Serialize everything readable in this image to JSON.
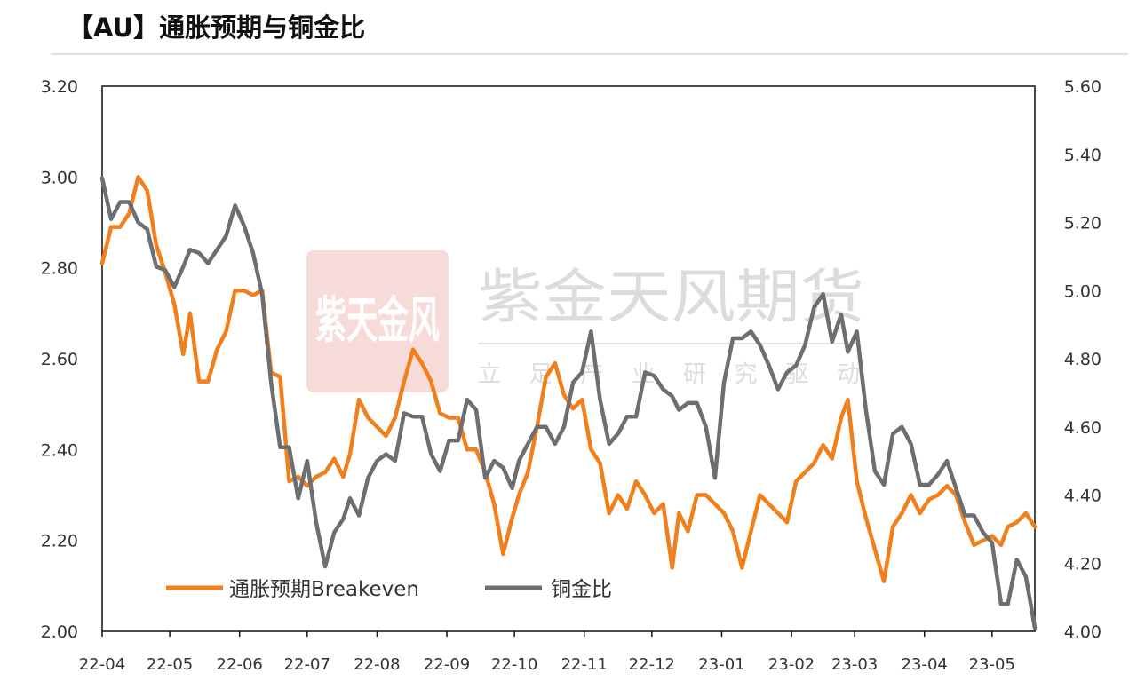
{
  "title": "【AU】通胀预期与铜金比",
  "watermark": {
    "brand": "紫金天风期货",
    "slogan": "立 足 产 业 研 究 驱 动",
    "seal": "紫天金风"
  },
  "chart_data": {
    "type": "line",
    "title": "【AU】通胀预期与铜金比",
    "legend_position": "bottom-left-inside",
    "grid": false,
    "x_tick_labels": [
      "22-04",
      "22-05",
      "22-06",
      "22-07",
      "22-08",
      "22-09",
      "22-10",
      "22-11",
      "22-12",
      "23-01",
      "23-02",
      "23-03",
      "23-04",
      "23-05"
    ],
    "x_tick_dates": [
      "2022-04-01",
      "2022-05-01",
      "2022-06-01",
      "2022-07-01",
      "2022-08-01",
      "2022-09-01",
      "2022-10-01",
      "2022-11-01",
      "2022-12-01",
      "2023-01-01",
      "2023-02-01",
      "2023-03-01",
      "2023-04-01",
      "2023-05-01"
    ],
    "xlim": [
      "2022-04-01",
      "2023-05-20"
    ],
    "y_left": {
      "ylim": [
        2.0,
        3.2
      ],
      "ticks": [
        "2.00",
        "2.20",
        "2.40",
        "2.60",
        "2.80",
        "3.00",
        "3.20"
      ]
    },
    "y_right": {
      "ylim": [
        4.0,
        5.6
      ],
      "ticks": [
        "4.00",
        "4.20",
        "4.40",
        "4.60",
        "4.80",
        "5.00",
        "5.20",
        "5.40",
        "5.60"
      ]
    },
    "x": [
      "2022-04-01",
      "2022-04-05",
      "2022-04-09",
      "2022-04-13",
      "2022-04-17",
      "2022-04-21",
      "2022-04-25",
      "2022-04-29",
      "2022-05-03",
      "2022-05-07",
      "2022-05-10",
      "2022-05-14",
      "2022-05-18",
      "2022-05-22",
      "2022-05-26",
      "2022-05-30",
      "2022-06-03",
      "2022-06-07",
      "2022-06-11",
      "2022-06-15",
      "2022-06-19",
      "2022-06-23",
      "2022-06-27",
      "2022-07-01",
      "2022-07-05",
      "2022-07-09",
      "2022-07-13",
      "2022-07-17",
      "2022-07-20",
      "2022-07-24",
      "2022-07-28",
      "2022-08-01",
      "2022-08-05",
      "2022-08-09",
      "2022-08-13",
      "2022-08-17",
      "2022-08-21",
      "2022-08-25",
      "2022-08-29",
      "2022-09-02",
      "2022-09-06",
      "2022-09-10",
      "2022-09-14",
      "2022-09-18",
      "2022-09-22",
      "2022-09-26",
      "2022-09-30",
      "2022-10-03",
      "2022-10-07",
      "2022-10-11",
      "2022-10-15",
      "2022-10-19",
      "2022-10-23",
      "2022-10-27",
      "2022-10-31",
      "2022-11-04",
      "2022-11-08",
      "2022-11-12",
      "2022-11-16",
      "2022-11-20",
      "2022-11-24",
      "2022-11-28",
      "2022-12-02",
      "2022-12-06",
      "2022-12-10",
      "2022-12-13",
      "2022-12-17",
      "2022-12-21",
      "2022-12-25",
      "2022-12-29",
      "2023-01-02",
      "2023-01-06",
      "2023-01-10",
      "2023-01-14",
      "2023-01-18",
      "2023-01-22",
      "2023-01-26",
      "2023-01-30",
      "2023-02-03",
      "2023-02-07",
      "2023-02-11",
      "2023-02-15",
      "2023-02-19",
      "2023-02-23",
      "2023-02-26",
      "2023-03-02",
      "2023-03-06",
      "2023-03-10",
      "2023-03-14",
      "2023-03-18",
      "2023-03-22",
      "2023-03-26",
      "2023-03-30",
      "2023-04-03",
      "2023-04-07",
      "2023-04-11",
      "2023-04-15",
      "2023-04-19",
      "2023-04-23",
      "2023-04-27",
      "2023-05-01",
      "2023-05-05",
      "2023-05-08",
      "2023-05-12",
      "2023-05-16",
      "2023-05-20"
    ],
    "series": [
      {
        "name": "通胀预期Breakeven",
        "axis": "left",
        "color": "#f07f1c",
        "values": [
          2.81,
          2.89,
          2.89,
          2.92,
          3.0,
          2.97,
          2.85,
          2.79,
          2.72,
          2.61,
          2.7,
          2.55,
          2.55,
          2.62,
          2.66,
          2.75,
          2.75,
          2.74,
          2.75,
          2.57,
          2.56,
          2.33,
          2.34,
          2.32,
          2.34,
          2.35,
          2.38,
          2.34,
          2.39,
          2.51,
          2.47,
          2.45,
          2.43,
          2.47,
          2.55,
          2.62,
          2.59,
          2.55,
          2.48,
          2.47,
          2.47,
          2.4,
          2.4,
          2.35,
          2.28,
          2.17,
          2.25,
          2.3,
          2.35,
          2.45,
          2.56,
          2.59,
          2.52,
          2.49,
          2.51,
          2.4,
          2.37,
          2.26,
          2.3,
          2.27,
          2.33,
          2.3,
          2.26,
          2.28,
          2.14,
          2.26,
          2.22,
          2.3,
          2.3,
          2.28,
          2.26,
          2.22,
          2.14,
          2.22,
          2.3,
          2.28,
          2.26,
          2.24,
          2.33,
          2.35,
          2.37,
          2.41,
          2.38,
          2.47,
          2.51,
          2.33,
          2.25,
          2.18,
          2.11,
          2.23,
          2.26,
          2.3,
          2.26,
          2.29,
          2.3,
          2.32,
          2.3,
          2.24,
          2.19,
          2.2,
          2.21,
          2.19,
          2.23,
          2.24,
          2.26,
          2.23
        ]
      },
      {
        "name": "铜金比",
        "axis": "right",
        "color": "#6d6e71",
        "values": [
          5.33,
          5.21,
          5.26,
          5.26,
          5.2,
          5.18,
          5.07,
          5.06,
          5.01,
          5.07,
          5.12,
          5.11,
          5.08,
          5.12,
          5.16,
          5.25,
          5.19,
          5.11,
          4.99,
          4.73,
          4.54,
          4.54,
          4.39,
          4.5,
          4.32,
          4.19,
          4.29,
          4.33,
          4.39,
          4.34,
          4.45,
          4.5,
          4.52,
          4.5,
          4.64,
          4.63,
          4.63,
          4.52,
          4.47,
          4.56,
          4.56,
          4.68,
          4.65,
          4.45,
          4.5,
          4.48,
          4.42,
          4.5,
          4.55,
          4.6,
          4.6,
          4.55,
          4.6,
          4.73,
          4.76,
          4.88,
          4.68,
          4.55,
          4.58,
          4.63,
          4.63,
          4.76,
          4.75,
          4.71,
          4.69,
          4.65,
          4.67,
          4.67,
          4.6,
          4.45,
          4.73,
          4.86,
          4.86,
          4.88,
          4.84,
          4.78,
          4.71,
          4.76,
          4.78,
          4.84,
          4.95,
          4.99,
          4.85,
          4.93,
          4.82,
          4.88,
          4.65,
          4.47,
          4.43,
          4.58,
          4.6,
          4.55,
          4.43,
          4.43,
          4.46,
          4.5,
          4.42,
          4.34,
          4.34,
          4.29,
          4.26,
          4.08,
          4.08,
          4.21,
          4.16,
          4.01
        ]
      }
    ]
  }
}
